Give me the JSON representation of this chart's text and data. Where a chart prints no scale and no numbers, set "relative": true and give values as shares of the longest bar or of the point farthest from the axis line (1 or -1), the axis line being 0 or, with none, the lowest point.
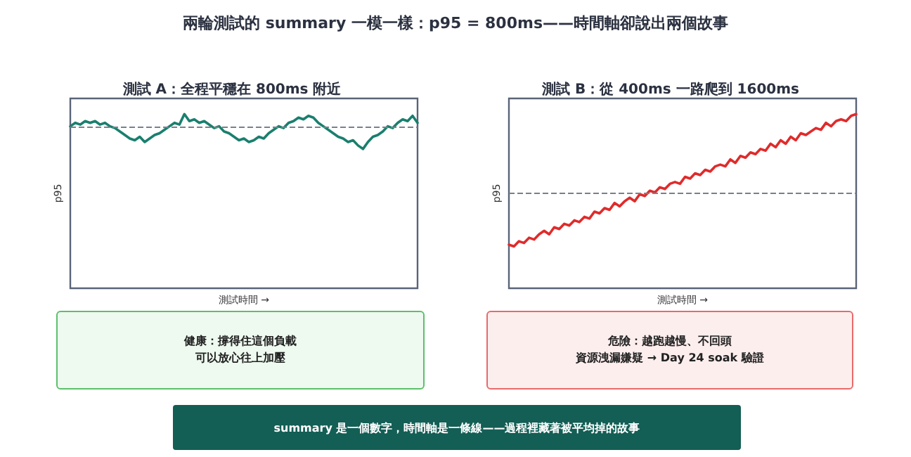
{
  "chart_data": [
    {
      "type": "line",
      "title": "測試 A：全程平穩在 800ms 附近",
      "xlabel": "測試時間 →",
      "ylabel": "p95",
      "relative": true,
      "grid": false,
      "line_style": "solid",
      "tick_labels": false,
      "categories": [
        null,
        null,
        null,
        null,
        null,
        null,
        null,
        null,
        null,
        null,
        null,
        null,
        null,
        null,
        null,
        null,
        null,
        null,
        null,
        null,
        null,
        null,
        null,
        null,
        null,
        null,
        null,
        null,
        null,
        null,
        null,
        null,
        null,
        null,
        null,
        null,
        null,
        null,
        null,
        null,
        null,
        null,
        null,
        null,
        null,
        null,
        null,
        null,
        null,
        null,
        null,
        null,
        null,
        null,
        null,
        null,
        null,
        null,
        null,
        null,
        null,
        null,
        null,
        null,
        null,
        null,
        null,
        null,
        null,
        null,
        null
      ],
      "series": [
        {
          "color": "#1a7f6e",
          "values": [
            0.93,
            0.95,
            0.94,
            0.96,
            0.95,
            0.96,
            0.94,
            0.95,
            0.93,
            0.92,
            0.9,
            0.88,
            0.86,
            0.85,
            0.87,
            0.84,
            0.86,
            0.88,
            0.89,
            0.91,
            0.93,
            0.95,
            0.94,
            1.0,
            0.96,
            0.97,
            0.95,
            0.96,
            0.94,
            0.92,
            0.93,
            0.9,
            0.89,
            0.87,
            0.85,
            0.86,
            0.84,
            0.85,
            0.87,
            0.86,
            0.89,
            0.91,
            0.93,
            0.92,
            0.95,
            0.96,
            0.98,
            0.97,
            0.99,
            0.98,
            0.95,
            0.93,
            0.91,
            0.89,
            0.87,
            0.86,
            0.84,
            0.85,
            0.82,
            0.8,
            0.84,
            0.87,
            0.88,
            0.9,
            0.93,
            0.92,
            0.95,
            0.97,
            0.96,
            0.99,
            0.95
          ]
        }
      ],
      "ref_lines": [
        {
          "axis": "y",
          "value": 0.93,
          "color": "#7a7f8a",
          "line_style": "dashed"
        }
      ],
      "annotations": [
        "健康：撐得住這個負載",
        "可以放心往上加壓"
      ]
    },
    {
      "type": "line",
      "title": "測試 B：從 400ms 一路爬到 1600ms",
      "xlabel": "測試時間 →",
      "ylabel": "p95",
      "relative": true,
      "grid": false,
      "line_style": "solid",
      "tick_labels": false,
      "categories": [
        null,
        null,
        null,
        null,
        null,
        null,
        null,
        null,
        null,
        null,
        null,
        null,
        null,
        null,
        null,
        null,
        null,
        null,
        null,
        null,
        null,
        null,
        null,
        null,
        null,
        null,
        null,
        null,
        null,
        null,
        null,
        null,
        null,
        null,
        null,
        null,
        null,
        null,
        null,
        null,
        null,
        null,
        null,
        null,
        null,
        null,
        null,
        null,
        null,
        null,
        null,
        null,
        null,
        null,
        null,
        null,
        null,
        null,
        null,
        null,
        null,
        null,
        null,
        null,
        null,
        null,
        null,
        null,
        null,
        null
      ],
      "series": [
        {
          "color": "#e02b2b",
          "values": [
            0.25,
            0.24,
            0.27,
            0.26,
            0.29,
            0.28,
            0.31,
            0.33,
            0.31,
            0.35,
            0.34,
            0.37,
            0.36,
            0.39,
            0.38,
            0.41,
            0.4,
            0.44,
            0.43,
            0.46,
            0.45,
            0.49,
            0.47,
            0.5,
            0.52,
            0.5,
            0.54,
            0.53,
            0.56,
            0.55,
            0.58,
            0.57,
            0.6,
            0.61,
            0.6,
            0.64,
            0.63,
            0.66,
            0.65,
            0.68,
            0.67,
            0.7,
            0.71,
            0.7,
            0.74,
            0.72,
            0.76,
            0.75,
            0.78,
            0.77,
            0.8,
            0.79,
            0.83,
            0.81,
            0.85,
            0.83,
            0.87,
            0.85,
            0.89,
            0.88,
            0.9,
            0.92,
            0.91,
            0.95,
            0.93,
            0.96,
            0.97,
            0.96,
            0.99,
            1.0
          ]
        }
      ],
      "ref_lines": [
        {
          "axis": "y",
          "value": 0.55,
          "color": "#7a7f8a",
          "line_style": "dashed"
        }
      ],
      "annotations": [
        "危險：越跑越慢、不回頭",
        "資源洩漏嫌疑 → Day 24 soak 驗證"
      ]
    },
    {
      "type": "other",
      "title": "兩輪測試的 summary 一模一樣：p95 = 800ms——時間軸卻說出兩個故事",
      "annotations": [
        "summary 是一個數字，時間軸是一條線——過程裡藏著被平均掉的故事"
      ]
    }
  ]
}
